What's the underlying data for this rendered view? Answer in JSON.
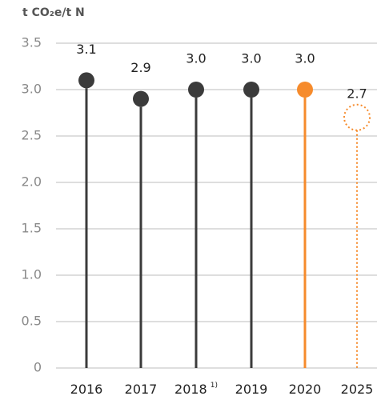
{
  "chart_data": {
    "type": "lollipop",
    "y_label": "t CO₂e/t N",
    "categories": [
      "2016",
      "2017",
      "2018",
      "2019",
      "2020",
      "2025"
    ],
    "category_notes": [
      null,
      null,
      "1)",
      null,
      null,
      null
    ],
    "values": [
      3.1,
      2.9,
      3.0,
      3.0,
      3.0,
      2.7
    ],
    "value_labels": [
      "3.1",
      "2.9",
      "3.0",
      "3.0",
      "3.0",
      "2.7"
    ],
    "point_colors": [
      "#3b3b3b",
      "#3b3b3b",
      "#3b3b3b",
      "#3b3b3b",
      "#f68b2c",
      "#f68b2c"
    ],
    "point_styles": [
      "solid",
      "solid",
      "solid",
      "solid",
      "solid",
      "dotted"
    ],
    "ylim": [
      0,
      3.5
    ],
    "yticks": [
      0,
      0.5,
      {
        "value": 1,
        "label": "1.0"
      },
      1.5,
      {
        "value": 2,
        "label": "2.0"
      },
      2.5,
      {
        "value": 3,
        "label": "3.0"
      },
      3.5
    ],
    "grid": true
  }
}
